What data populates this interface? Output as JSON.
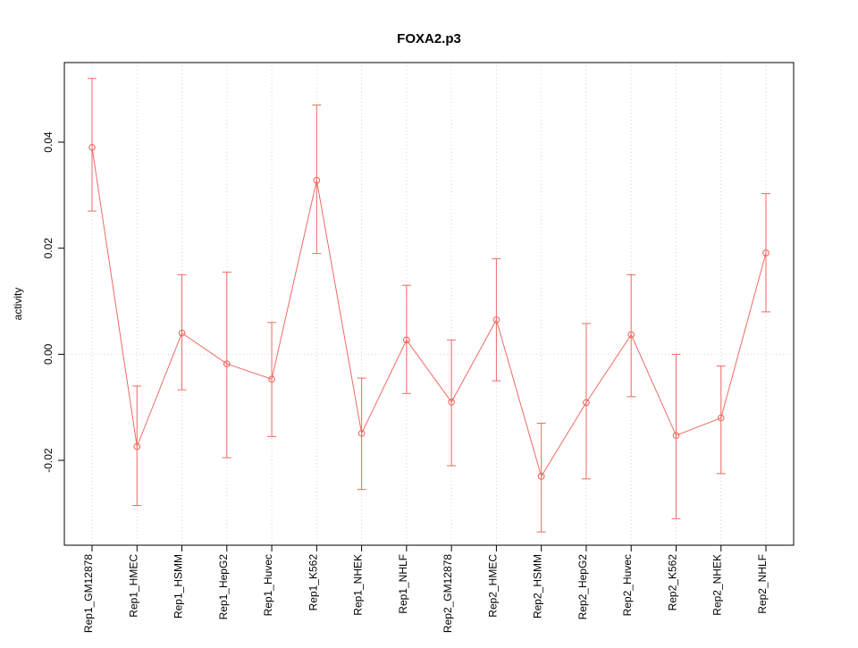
{
  "chart_data": {
    "type": "line",
    "title": "FOXA2.p3",
    "xlabel": "",
    "ylabel": "activity",
    "categories": [
      "Rep1_GM12878",
      "Rep1_HMEC",
      "Rep1_HSMM",
      "Rep1_HepG2",
      "Rep1_Huvec",
      "Rep1_K562",
      "Rep1_NHEK",
      "Rep1_NHLF",
      "Rep2_GM12878",
      "Rep2_HMEC",
      "Rep2_HSMM",
      "Rep2_HepG2",
      "Rep2_Huvec",
      "Rep2_K562",
      "Rep2_NHEK",
      "Rep2_NHLF"
    ],
    "values": [
      0.039,
      -0.0174,
      0.004,
      -0.0018,
      -0.0047,
      0.0328,
      -0.0149,
      0.0027,
      -0.009,
      0.0065,
      -0.023,
      -0.0091,
      0.0037,
      -0.0153,
      -0.012,
      0.0191
    ],
    "error_low": [
      0.027,
      -0.0285,
      -0.0067,
      -0.0195,
      -0.0155,
      0.019,
      -0.0255,
      -0.0074,
      -0.021,
      -0.005,
      -0.0335,
      -0.0235,
      -0.008,
      -0.031,
      -0.0225,
      0.008
    ],
    "error_high": [
      0.052,
      -0.006,
      0.015,
      0.0155,
      0.006,
      0.047,
      -0.0045,
      0.013,
      0.0027,
      0.018,
      -0.013,
      0.0058,
      0.015,
      0.0,
      -0.0022,
      0.0303
    ],
    "yticks": [
      -0.02,
      0.0,
      0.02,
      0.04
    ],
    "ylim": [
      -0.036,
      0.055
    ],
    "series_color": "#ee6a62",
    "grid_color": "#d4d4d4",
    "axis_color": "#000000",
    "grid": "dotted vertical line at every category; dotted horizontal line at y=0",
    "legend": "none"
  }
}
